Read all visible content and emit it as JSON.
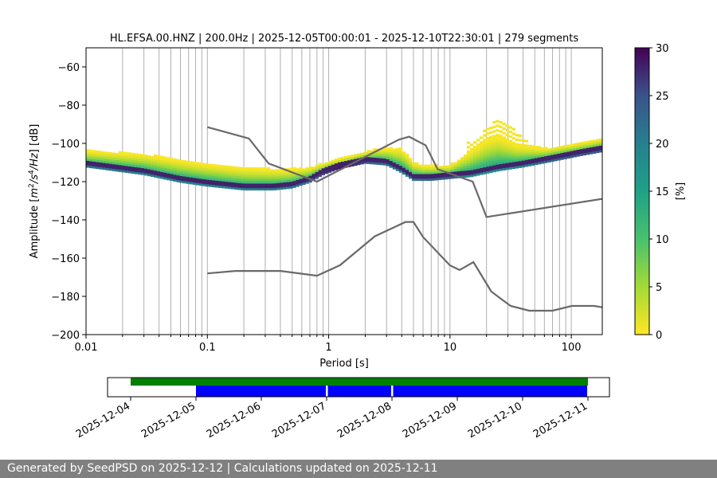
{
  "chart_data": {
    "type": "heatmap",
    "title": "HL.EFSA.00.HNZ | 200.0Hz | 2025-12-05T00:00:01 - 2025-12-10T22:30:01 | 279 segments",
    "xlabel": "Period [s]",
    "ylabel_parts": [
      "Amplitude [",
      "m",
      "2",
      "/",
      "s",
      "4",
      "/",
      "Hz",
      "] [dB]"
    ],
    "xscale": "log",
    "xlim": [
      0.01,
      180
    ],
    "ylim": [
      -200,
      -50
    ],
    "x_ticks": [
      0.01,
      0.1,
      1,
      10,
      100
    ],
    "x_tick_labels": [
      "0.01",
      "0.1",
      "1",
      "10",
      "100"
    ],
    "y_ticks": [
      -200,
      -180,
      -160,
      -140,
      -120,
      -100,
      -80,
      -60
    ],
    "y_tick_labels": [
      "−200",
      "−180",
      "−160",
      "−140",
      "−120",
      "−100",
      "−80",
      "−60"
    ],
    "grid": "vertical-minor",
    "colorbar": {
      "label": "[%]",
      "range": [
        0,
        30
      ],
      "ticks": [
        0,
        5,
        10,
        15,
        20,
        25,
        30
      ],
      "tick_labels": [
        "0",
        "5",
        "10",
        "15",
        "20",
        "25",
        "30"
      ],
      "colormap": "viridis_r"
    },
    "nhnm": [
      [
        0.1,
        -91.5
      ],
      [
        0.22,
        -97.4
      ],
      [
        0.32,
        -110.5
      ],
      [
        0.8,
        -120
      ],
      [
        3.8,
        -98
      ],
      [
        4.6,
        -96.5
      ],
      [
        6.3,
        -101
      ],
      [
        7.9,
        -113.5
      ],
      [
        15.4,
        -120
      ],
      [
        20,
        -138.5
      ],
      [
        180,
        -129
      ]
    ],
    "nlnm": [
      [
        0.1,
        -168
      ],
      [
        0.17,
        -166.7
      ],
      [
        0.4,
        -166.7
      ],
      [
        0.8,
        -169.2
      ],
      [
        1.24,
        -163.7
      ],
      [
        2.4,
        -148.6
      ],
      [
        4.3,
        -141.1
      ],
      [
        5,
        -141.1
      ],
      [
        6,
        -149
      ],
      [
        10,
        -163.8
      ],
      [
        12,
        -166.2
      ],
      [
        15.6,
        -162.1
      ],
      [
        21.9,
        -177.5
      ],
      [
        31.6,
        -185
      ],
      [
        45,
        -187.5
      ],
      [
        70,
        -187.5
      ],
      [
        101,
        -185
      ],
      [
        154,
        -185
      ],
      [
        180,
        -185.7
      ]
    ],
    "psd_mode": [
      [
        0.01,
        -111
      ],
      [
        0.03,
        -115
      ],
      [
        0.06,
        -119
      ],
      [
        0.1,
        -121
      ],
      [
        0.2,
        -123
      ],
      [
        0.35,
        -123
      ],
      [
        0.5,
        -122
      ],
      [
        0.7,
        -119
      ],
      [
        0.9,
        -115
      ],
      [
        1.2,
        -112
      ],
      [
        2,
        -109
      ],
      [
        3,
        -110
      ],
      [
        4,
        -114
      ],
      [
        5,
        -118
      ],
      [
        7,
        -118
      ],
      [
        10,
        -117
      ],
      [
        15,
        -116
      ],
      [
        25,
        -113
      ],
      [
        40,
        -111
      ],
      [
        70,
        -108
      ],
      [
        120,
        -105
      ],
      [
        180,
        -103
      ]
    ],
    "psd_upper": [
      [
        0.01,
        -104
      ],
      [
        0.03,
        -106
      ],
      [
        0.06,
        -109
      ],
      [
        0.1,
        -111
      ],
      [
        0.2,
        -113
      ],
      [
        0.4,
        -114
      ],
      [
        0.7,
        -113
      ],
      [
        1,
        -110
      ],
      [
        1.5,
        -107
      ],
      [
        2.5,
        -103
      ],
      [
        4,
        -103
      ],
      [
        5,
        -110
      ],
      [
        6,
        -112
      ],
      [
        10,
        -112
      ],
      [
        20,
        -98
      ],
      [
        25,
        -96
      ],
      [
        35,
        -101
      ],
      [
        60,
        -103
      ],
      [
        100,
        -101
      ],
      [
        180,
        -98
      ]
    ],
    "psd_high": [
      [
        15,
        -100
      ],
      [
        20,
        -93
      ],
      [
        25,
        -87
      ],
      [
        30,
        -90
      ],
      [
        40,
        -98
      ],
      [
        50,
        -102
      ]
    ],
    "availability": {
      "date_labels": [
        "2025-12-04",
        "2025-12-05",
        "2025-12-06",
        "2025-12-07",
        "2025-12-08",
        "2025-12-09",
        "2025-12-10",
        "2025-12-11"
      ],
      "request": {
        "start": "2025-12-04",
        "end": "2025-12-11"
      },
      "data_segments": [
        {
          "start": "2025-12-05",
          "end": "2025-12-07"
        },
        {
          "start": "2025-12-07",
          "end": "2025-12-08"
        },
        {
          "start": "2025-12-08",
          "end": "2025-12-11"
        }
      ],
      "request_color": "#008000",
      "data_color": "#0000ff"
    }
  },
  "colors": {
    "line": "#696969",
    "grid": "#b0b0b0",
    "footer_bg": "#808080"
  },
  "footer": {
    "text": "Generated by SeedPSD on 2025-12-12 | Calculations updated on 2025-12-11"
  }
}
